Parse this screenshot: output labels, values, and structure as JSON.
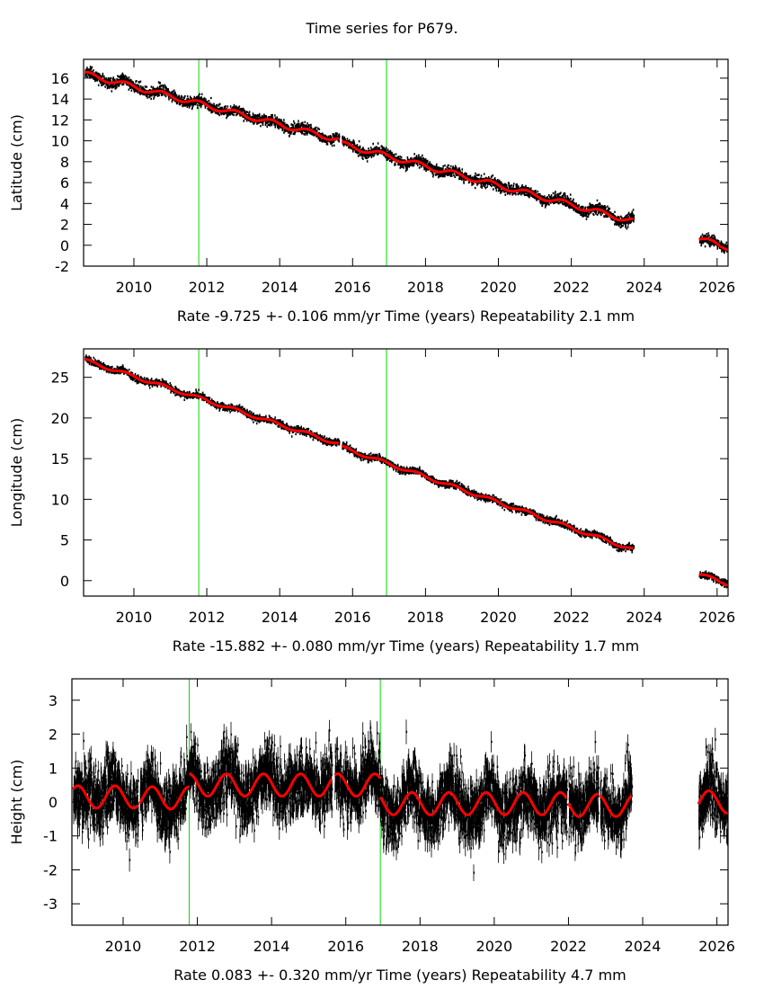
{
  "title": "Time series for P679.",
  "chart_data": [
    {
      "type": "scatter",
      "component": "latitude",
      "ylabel": "Latitude (cm)",
      "xlabel": "Time (years)",
      "rate_label": "Rate -9.725 +- 0.106 mm/yr",
      "repeatability_label": "Repeatability 2.1 mm",
      "rate_mm_per_yr": -9.725,
      "rate_sigma_mm_per_yr": 0.106,
      "repeatability_mm": 2.1,
      "xlim": [
        2008.62,
        2026.3
      ],
      "ylim": [
        -2,
        17.8
      ],
      "xticks": [
        "2010",
        "2012",
        "2014",
        "2016",
        "2018",
        "2020",
        "2022",
        "2024",
        "2026"
      ],
      "yticks": [
        "-2",
        "0",
        "2",
        "4",
        "6",
        "8",
        "10",
        "12",
        "14",
        "16"
      ],
      "event_lines": [
        2011.78,
        2016.93
      ],
      "data_segments": [
        {
          "start": 2008.65,
          "end": 2015.62,
          "y_start": 16.4,
          "y_end": 10.1
        },
        {
          "start": 2015.7,
          "end": 2023.7,
          "y_start": 9.7,
          "y_end": 2.3
        },
        {
          "start": 2025.5,
          "end": 2026.3,
          "y_start": 0.6,
          "y_end": -0.2
        }
      ],
      "seasonal_amplitude": 0.25,
      "noise_sigma": 0.25,
      "fit_color": "#ff0000",
      "point_color": "#000000",
      "event_color": "#00dd00"
    },
    {
      "type": "scatter",
      "component": "longitude",
      "ylabel": "Longitude (cm)",
      "xlabel": "Time (years)",
      "rate_label": "Rate -15.882 +- 0.080 mm/yr",
      "repeatability_label": "Repeatability 1.7 mm",
      "rate_mm_per_yr": -15.882,
      "rate_sigma_mm_per_yr": 0.08,
      "repeatability_mm": 1.7,
      "xlim": [
        2008.62,
        2026.3
      ],
      "ylim": [
        -1.9,
        28.5
      ],
      "xticks": [
        "2010",
        "2012",
        "2014",
        "2016",
        "2018",
        "2020",
        "2022",
        "2024",
        "2026"
      ],
      "yticks": [
        "0",
        "5",
        "10",
        "15",
        "20",
        "25"
      ],
      "event_lines": [
        2011.78,
        2016.93
      ],
      "data_segments": [
        {
          "start": 2008.65,
          "end": 2015.62,
          "y_start": 27.1,
          "y_end": 16.8
        },
        {
          "start": 2015.7,
          "end": 2023.7,
          "y_start": 16.4,
          "y_end": 3.8
        },
        {
          "start": 2025.5,
          "end": 2026.3,
          "y_start": 0.8,
          "y_end": -0.4
        }
      ],
      "seasonal_amplitude": 0.2,
      "noise_sigma": 0.2,
      "fit_color": "#ff0000",
      "point_color": "#000000",
      "event_color": "#00dd00"
    },
    {
      "type": "scatter",
      "component": "height",
      "ylabel": "Height (cm)",
      "xlabel": "Time (years)",
      "rate_label": "Rate 0.083 +- 0.320 mm/yr",
      "repeatability_label": "Repeatability 4.7 mm",
      "rate_mm_per_yr": 0.083,
      "rate_sigma_mm_per_yr": 0.32,
      "repeatability_mm": 4.7,
      "xlim": [
        2008.62,
        2026.3
      ],
      "ylim": [
        -3.63,
        3.63
      ],
      "xticks": [
        "2010",
        "2012",
        "2014",
        "2016",
        "2018",
        "2020",
        "2022",
        "2024",
        "2026"
      ],
      "yticks": [
        "-3",
        "-2",
        "-1",
        "0",
        "1",
        "2",
        "3"
      ],
      "event_lines": [
        2011.78,
        2016.93
      ],
      "data_segments": [
        {
          "start": 2008.65,
          "end": 2010.4,
          "y_start": 0.15,
          "y_end": 0.15
        },
        {
          "start": 2010.45,
          "end": 2011.78,
          "y_start": 0.12,
          "y_end": 0.12
        },
        {
          "start": 2011.78,
          "end": 2015.62,
          "y_start": 0.5,
          "y_end": 0.5
        },
        {
          "start": 2015.7,
          "end": 2016.93,
          "y_start": 0.5,
          "y_end": 0.5
        },
        {
          "start": 2016.93,
          "end": 2021.95,
          "y_start": -0.05,
          "y_end": -0.05
        },
        {
          "start": 2022.0,
          "end": 2022.8,
          "y_start": -0.1,
          "y_end": -0.1
        },
        {
          "start": 2022.85,
          "end": 2023.7,
          "y_start": -0.1,
          "y_end": -0.1
        },
        {
          "start": 2025.5,
          "end": 2026.3,
          "y_start": 0.0,
          "y_end": 0.0
        }
      ],
      "seasonal_amplitude": 0.33,
      "seasonal_peak_fraction": 0.78,
      "noise_sigma": 0.45,
      "error_bars": true,
      "fit_color": "#ff0000",
      "point_color": "#000000",
      "event_color": "#00dd00"
    }
  ]
}
